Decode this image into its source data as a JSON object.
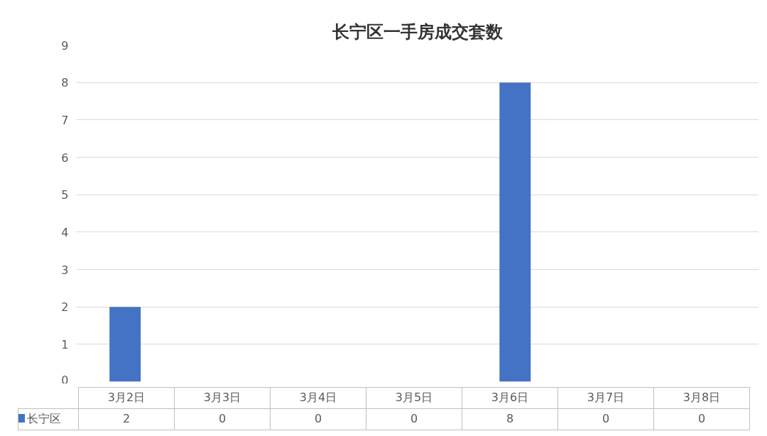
{
  "chart_data": {
    "type": "bar",
    "title": "长宁区一手房成交套数",
    "categories": [
      "3月2日",
      "3月3日",
      "3月4日",
      "3月5日",
      "3月6日",
      "3月7日",
      "3月8日"
    ],
    "series": [
      {
        "name": "长宁区",
        "color": "#4472c4",
        "values": [
          2,
          0,
          0,
          0,
          8,
          0,
          0
        ]
      }
    ],
    "ylim": [
      0,
      9
    ],
    "yticks": [
      0,
      1,
      2,
      3,
      4,
      5,
      6,
      7,
      8,
      9
    ],
    "grid": "y",
    "legend": "bottom",
    "data_labels": true
  }
}
